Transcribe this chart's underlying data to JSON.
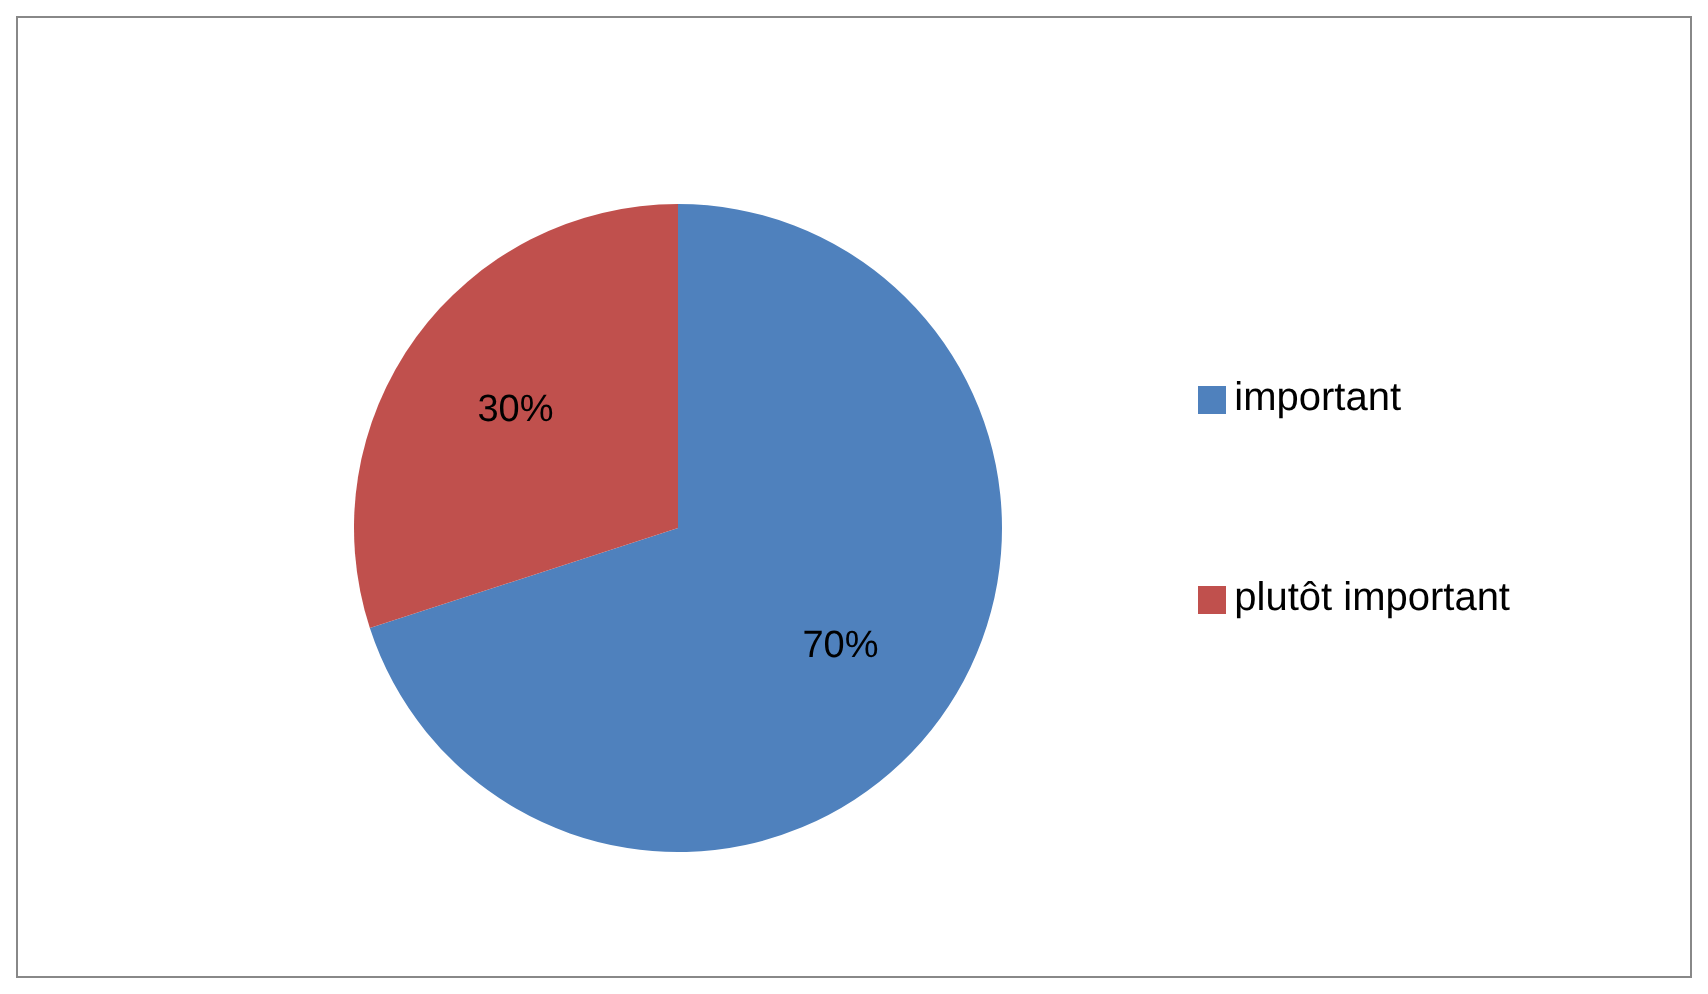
{
  "chart_data": {
    "type": "pie",
    "categories": [
      "important",
      "plutôt important"
    ],
    "values": [
      70,
      30
    ],
    "colors": [
      "#4f81bd",
      "#c0504d"
    ],
    "value_labels": [
      "70%",
      "30%"
    ],
    "legend": "right"
  }
}
